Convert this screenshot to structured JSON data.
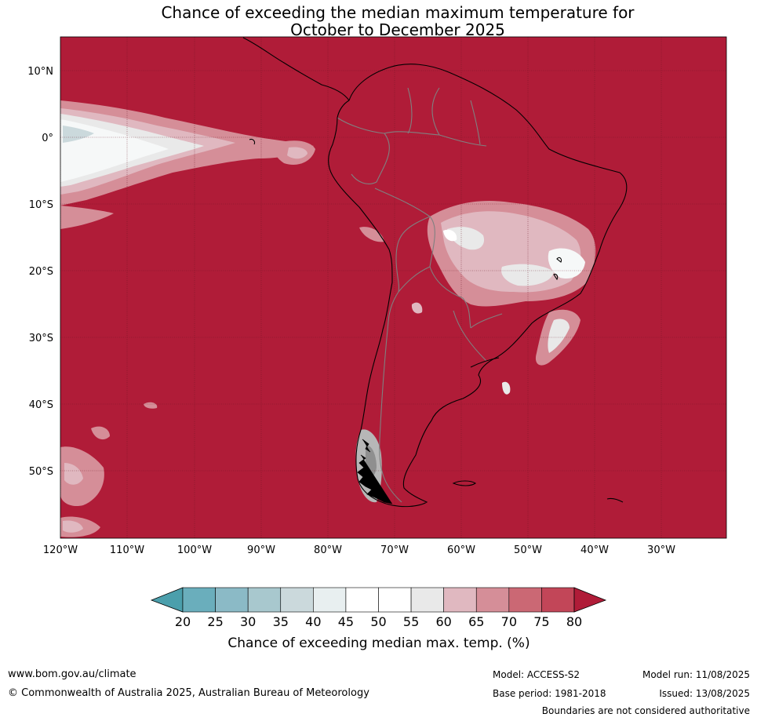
{
  "title": {
    "line1": "Chance of exceeding the median maximum temperature for",
    "line2": "October to December 2025"
  },
  "map": {
    "lat_labels": [
      "10°N",
      "0°",
      "10°S",
      "20°S",
      "30°S",
      "40°S",
      "50°S"
    ],
    "lon_labels": [
      "120°W",
      "110°W",
      "100°W",
      "90°W",
      "80°W",
      "70°W",
      "60°W",
      "50°W",
      "40°W",
      "30°W"
    ],
    "background_color": "#b01c38",
    "coast_color": "#000000",
    "border_color": "#808080"
  },
  "colorbar": {
    "ticks": [
      "20",
      "25",
      "30",
      "35",
      "40",
      "45",
      "50",
      "55",
      "60",
      "65",
      "70",
      "75",
      "80"
    ],
    "colors": [
      "#6aaebc",
      "#8bbac6",
      "#a8c8ce",
      "#cbd9dc",
      "#e8eff0",
      "#ffffff",
      "#ffffff",
      "#e9e9e9",
      "#e0b8c0",
      "#d58e98",
      "#cb6874",
      "#c24658"
    ],
    "low_color": "#4b9fac",
    "high_color": "#b01c38",
    "label": "Chance of exceeding median max. temp. (%)"
  },
  "footer": {
    "website": "www.bom.gov.au/climate",
    "copyright": "© Commonwealth of Australia 2025, Australian Bureau of Meteorology",
    "model": "Model: ACCESS-S2",
    "base_period": "Base period: 1981-2018",
    "model_run": "Model run: 11/08/2025",
    "issued": "Issued: 13/08/2025",
    "disclaimer": "Boundaries are not considered authoritative"
  }
}
